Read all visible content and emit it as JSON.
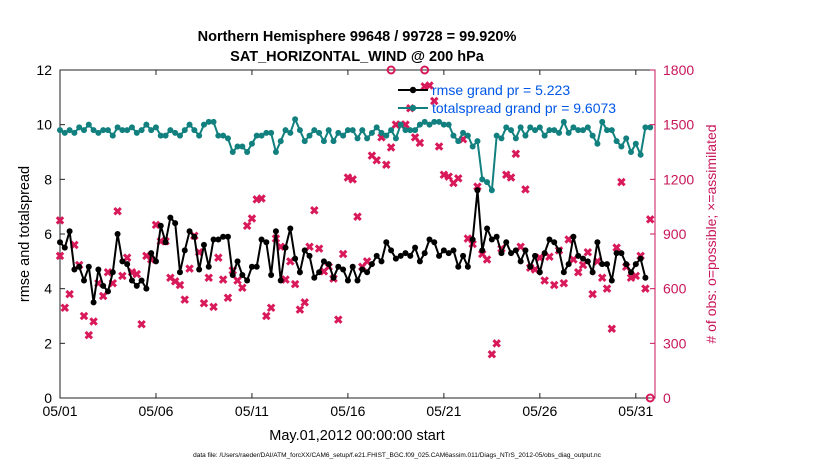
{
  "chart_data": {
    "type": "line",
    "title": "Northern Hemisphere 99648 / 99728 = 99.920%",
    "subtitle": "SAT_HORIZONTAL_WIND @ 200 hPa",
    "xlabel": "May.01,2012 00:00:00 start",
    "ylabel_left": "rmse and totalspread",
    "ylabel_right": "# of obs: o=possible; ×=assimilated",
    "footer": "data file: /Users/raeder/DAI/ATM_forcXX/CAM6_setup/f.e21.FHIST_BGC.f09_025.CAM6assim.011/Diags_NTrS_2012-05/obs_diag_output.nc",
    "xlim": [
      1,
      32
    ],
    "ylim_left": [
      0,
      12
    ],
    "ylim_right": [
      0,
      1800
    ],
    "x_ticks": [
      1,
      6,
      11,
      16,
      21,
      26,
      31
    ],
    "x_tick_labels": [
      "05/01",
      "05/06",
      "05/11",
      "05/16",
      "05/21",
      "05/26",
      "05/31"
    ],
    "y_ticks_left": [
      0,
      2,
      4,
      6,
      8,
      10,
      12
    ],
    "y_ticks_right": [
      0,
      300,
      600,
      900,
      1200,
      1500,
      1800
    ],
    "colors": {
      "rmse": "#000000",
      "spread": "#11807f",
      "obs": "#d8195a",
      "legend_text": "#0057e7",
      "right_axis": "#c8165a"
    },
    "legend": [
      "rmse grand pr = 5.223",
      "totalspread grand pr = 9.6073"
    ],
    "rmse": [
      [
        1.0,
        5.7
      ],
      [
        1.25,
        5.5
      ],
      [
        1.5,
        6.1
      ],
      [
        1.75,
        4.7
      ],
      [
        2.0,
        4.8
      ],
      [
        2.25,
        4.3
      ],
      [
        2.5,
        4.8
      ],
      [
        2.75,
        3.5
      ],
      [
        3.0,
        4.7
      ],
      [
        3.25,
        4.1
      ],
      [
        3.5,
        3.9
      ],
      [
        3.75,
        4.6
      ],
      [
        4.0,
        6.0
      ],
      [
        4.25,
        5.0
      ],
      [
        4.5,
        4.9
      ],
      [
        4.75,
        4.3
      ],
      [
        5.0,
        4.1
      ],
      [
        5.25,
        4.3
      ],
      [
        5.5,
        4.0
      ],
      [
        5.75,
        5.3
      ],
      [
        6.0,
        5.0
      ],
      [
        6.25,
        6.3
      ],
      [
        6.5,
        5.7
      ],
      [
        6.75,
        6.6
      ],
      [
        7.0,
        6.4
      ],
      [
        7.25,
        4.6
      ],
      [
        7.5,
        5.4
      ],
      [
        7.75,
        6.1
      ],
      [
        8.0,
        5.9
      ],
      [
        8.25,
        4.7
      ],
      [
        8.5,
        5.6
      ],
      [
        8.75,
        4.8
      ],
      [
        9.0,
        5.8
      ],
      [
        9.25,
        5.8
      ],
      [
        9.5,
        5.9
      ],
      [
        9.75,
        5.9
      ],
      [
        10.0,
        4.5
      ],
      [
        10.25,
        5.0
      ],
      [
        10.5,
        4.5
      ],
      [
        10.75,
        4.3
      ],
      [
        11.0,
        4.8
      ],
      [
        11.25,
        4.8
      ],
      [
        11.5,
        5.8
      ],
      [
        11.75,
        5.7
      ],
      [
        12.0,
        4.5
      ],
      [
        12.25,
        6.1
      ],
      [
        12.5,
        4.3
      ],
      [
        12.75,
        5.5
      ],
      [
        13.0,
        6.2
      ],
      [
        13.25,
        5.1
      ],
      [
        13.5,
        4.6
      ],
      [
        13.75,
        5.4
      ],
      [
        14.0,
        5.2
      ],
      [
        14.25,
        4.4
      ],
      [
        14.5,
        4.6
      ],
      [
        14.75,
        5.0
      ],
      [
        15.0,
        4.9
      ],
      [
        15.25,
        4.4
      ],
      [
        15.5,
        4.8
      ],
      [
        15.75,
        4.7
      ],
      [
        16.0,
        4.3
      ],
      [
        16.25,
        4.8
      ],
      [
        16.5,
        4.3
      ],
      [
        16.75,
        4.7
      ],
      [
        17.0,
        4.6
      ],
      [
        17.25,
        4.9
      ],
      [
        17.5,
        5.2
      ],
      [
        17.75,
        5.0
      ],
      [
        18.0,
        5.7
      ],
      [
        18.25,
        5.4
      ],
      [
        18.5,
        5.1
      ],
      [
        18.75,
        5.2
      ],
      [
        19.0,
        5.3
      ],
      [
        19.25,
        5.2
      ],
      [
        19.5,
        5.5
      ],
      [
        19.75,
        5.0
      ],
      [
        20.0,
        5.3
      ],
      [
        20.25,
        5.8
      ],
      [
        20.5,
        5.7
      ],
      [
        20.75,
        5.2
      ],
      [
        21.0,
        5.4
      ],
      [
        21.25,
        5.3
      ],
      [
        21.5,
        5.4
      ],
      [
        21.75,
        4.8
      ],
      [
        22.0,
        5.2
      ],
      [
        22.25,
        4.8
      ],
      [
        22.5,
        5.8
      ],
      [
        22.75,
        7.6
      ],
      [
        23.0,
        5.4
      ],
      [
        23.25,
        6.2
      ],
      [
        23.5,
        5.8
      ],
      [
        23.75,
        5.9
      ],
      [
        24.0,
        5.3
      ],
      [
        24.25,
        5.7
      ],
      [
        24.5,
        5.3
      ],
      [
        24.75,
        5.4
      ],
      [
        25.0,
        5.0
      ],
      [
        25.25,
        5.4
      ],
      [
        25.5,
        4.8
      ],
      [
        25.75,
        5.2
      ],
      [
        26.0,
        4.6
      ],
      [
        26.25,
        5.3
      ],
      [
        26.5,
        5.8
      ],
      [
        26.75,
        5.7
      ],
      [
        27.0,
        5.4
      ],
      [
        27.25,
        4.6
      ],
      [
        27.5,
        4.9
      ],
      [
        27.75,
        5.9
      ],
      [
        28.0,
        5.2
      ],
      [
        28.25,
        5.1
      ],
      [
        28.5,
        5.0
      ],
      [
        28.75,
        4.6
      ],
      [
        29.0,
        5.7
      ],
      [
        29.25,
        4.9
      ],
      [
        29.5,
        4.9
      ],
      [
        29.75,
        4.3
      ],
      [
        30.0,
        5.3
      ],
      [
        30.25,
        5.3
      ],
      [
        30.5,
        4.9
      ],
      [
        30.75,
        4.6
      ],
      [
        31.0,
        4.9
      ],
      [
        31.25,
        5.1
      ],
      [
        31.5,
        4.4
      ]
    ],
    "totalspread": [
      [
        1.0,
        9.8
      ],
      [
        1.25,
        9.7
      ],
      [
        1.5,
        9.8
      ],
      [
        1.75,
        9.7
      ],
      [
        2.0,
        9.9
      ],
      [
        2.25,
        9.8
      ],
      [
        2.5,
        10.0
      ],
      [
        2.75,
        9.8
      ],
      [
        3.0,
        9.7
      ],
      [
        3.25,
        9.8
      ],
      [
        3.5,
        9.8
      ],
      [
        3.75,
        9.6
      ],
      [
        4.0,
        9.9
      ],
      [
        4.25,
        9.8
      ],
      [
        4.5,
        9.8
      ],
      [
        4.75,
        9.9
      ],
      [
        5.0,
        9.7
      ],
      [
        5.25,
        9.8
      ],
      [
        5.5,
        10.0
      ],
      [
        5.75,
        9.8
      ],
      [
        6.0,
        9.9
      ],
      [
        6.25,
        9.6
      ],
      [
        6.5,
        9.6
      ],
      [
        6.75,
        9.8
      ],
      [
        7.0,
        9.7
      ],
      [
        7.25,
        9.6
      ],
      [
        7.5,
        9.8
      ],
      [
        7.75,
        10.0
      ],
      [
        8.0,
        9.8
      ],
      [
        8.25,
        9.6
      ],
      [
        8.5,
        10.0
      ],
      [
        8.75,
        10.1
      ],
      [
        9.0,
        10.1
      ],
      [
        9.25,
        9.6
      ],
      [
        9.5,
        9.6
      ],
      [
        9.75,
        9.5
      ],
      [
        10.0,
        9.0
      ],
      [
        10.25,
        9.2
      ],
      [
        10.5,
        9.2
      ],
      [
        10.75,
        9.0
      ],
      [
        11.0,
        9.3
      ],
      [
        11.25,
        9.6
      ],
      [
        11.5,
        9.6
      ],
      [
        11.75,
        9.7
      ],
      [
        12.0,
        9.7
      ],
      [
        12.25,
        9.0
      ],
      [
        12.5,
        9.4
      ],
      [
        12.75,
        9.8
      ],
      [
        13.0,
        9.7
      ],
      [
        13.25,
        10.2
      ],
      [
        13.5,
        9.8
      ],
      [
        13.75,
        9.4
      ],
      [
        14.0,
        9.6
      ],
      [
        14.25,
        9.8
      ],
      [
        14.5,
        9.7
      ],
      [
        14.75,
        9.4
      ],
      [
        15.0,
        9.8
      ],
      [
        15.25,
        9.4
      ],
      [
        15.5,
        9.7
      ],
      [
        15.75,
        9.6
      ],
      [
        16.0,
        9.8
      ],
      [
        16.25,
        9.8
      ],
      [
        16.5,
        9.5
      ],
      [
        16.75,
        9.8
      ],
      [
        17.0,
        9.5
      ],
      [
        17.25,
        9.7
      ],
      [
        17.5,
        9.9
      ],
      [
        17.75,
        9.7
      ],
      [
        18.0,
        9.6
      ],
      [
        18.25,
        9.8
      ],
      [
        18.5,
        9.5
      ],
      [
        18.75,
        10.0
      ],
      [
        19.0,
        9.8
      ],
      [
        19.25,
        9.8
      ],
      [
        19.5,
        9.8
      ],
      [
        19.75,
        10.0
      ],
      [
        20.0,
        10.1
      ],
      [
        20.25,
        10.0
      ],
      [
        20.5,
        10.1
      ],
      [
        20.75,
        10.1
      ],
      [
        21.0,
        10.0
      ],
      [
        21.25,
        10.0
      ],
      [
        21.5,
        9.6
      ],
      [
        21.75,
        9.4
      ],
      [
        22.0,
        9.7
      ],
      [
        22.25,
        9.6
      ],
      [
        22.5,
        9.2
      ],
      [
        22.75,
        9.4
      ],
      [
        23.0,
        8.0
      ],
      [
        23.25,
        7.9
      ],
      [
        23.5,
        7.6
      ],
      [
        23.75,
        9.6
      ],
      [
        24.0,
        9.5
      ],
      [
        24.25,
        9.9
      ],
      [
        24.5,
        9.8
      ],
      [
        24.75,
        9.5
      ],
      [
        25.0,
        9.9
      ],
      [
        25.25,
        9.6
      ],
      [
        25.5,
        9.9
      ],
      [
        25.75,
        9.8
      ],
      [
        26.0,
        9.9
      ],
      [
        26.25,
        9.6
      ],
      [
        26.5,
        9.8
      ],
      [
        26.75,
        9.8
      ],
      [
        27.0,
        9.7
      ],
      [
        27.25,
        10.1
      ],
      [
        27.5,
        9.7
      ],
      [
        27.75,
        9.9
      ],
      [
        28.0,
        9.8
      ],
      [
        28.25,
        9.8
      ],
      [
        28.5,
        9.9
      ],
      [
        28.75,
        9.6
      ],
      [
        29.0,
        9.3
      ],
      [
        29.25,
        10.1
      ],
      [
        29.5,
        9.8
      ],
      [
        29.75,
        9.8
      ],
      [
        30.0,
        9.4
      ],
      [
        30.25,
        9.2
      ],
      [
        30.5,
        9.5
      ],
      [
        30.75,
        9.0
      ],
      [
        31.0,
        9.3
      ],
      [
        31.25,
        8.9
      ],
      [
        31.5,
        9.9
      ],
      [
        31.75,
        9.9
      ]
    ],
    "obs_assimilated": [
      [
        1.0,
        975
      ],
      [
        1.0,
        780
      ],
      [
        1.25,
        495
      ],
      [
        1.5,
        570
      ],
      [
        1.75,
        840
      ],
      [
        2.0,
        730
      ],
      [
        2.25,
        450
      ],
      [
        2.5,
        345
      ],
      [
        2.75,
        420
      ],
      [
        3.0,
        630
      ],
      [
        3.25,
        560
      ],
      [
        3.5,
        690
      ],
      [
        3.75,
        630
      ],
      [
        4.0,
        1025
      ],
      [
        4.25,
        670
      ],
      [
        4.5,
        770
      ],
      [
        4.75,
        690
      ],
      [
        5.0,
        680
      ],
      [
        5.25,
        405
      ],
      [
        5.5,
        780
      ],
      [
        5.75,
        760
      ],
      [
        6.0,
        950
      ],
      [
        6.25,
        860
      ],
      [
        6.5,
        860
      ],
      [
        6.75,
        660
      ],
      [
        7.0,
        640
      ],
      [
        7.25,
        620
      ],
      [
        7.5,
        540
      ],
      [
        7.75,
        710
      ],
      [
        8.0,
        890
      ],
      [
        8.25,
        800
      ],
      [
        8.5,
        520
      ],
      [
        8.75,
        660
      ],
      [
        9.0,
        500
      ],
      [
        9.25,
        770
      ],
      [
        9.5,
        650
      ],
      [
        9.75,
        550
      ],
      [
        10.0,
        700
      ],
      [
        10.25,
        645
      ],
      [
        10.5,
        605
      ],
      [
        10.75,
        945
      ],
      [
        11.0,
        985
      ],
      [
        11.25,
        1090
      ],
      [
        11.5,
        1095
      ],
      [
        11.75,
        450
      ],
      [
        12.0,
        495
      ],
      [
        12.25,
        875
      ],
      [
        12.5,
        830
      ],
      [
        12.75,
        650
      ],
      [
        13.0,
        750
      ],
      [
        13.25,
        625
      ],
      [
        13.5,
        485
      ],
      [
        13.75,
        525
      ],
      [
        14.0,
        830
      ],
      [
        14.25,
        1030
      ],
      [
        14.5,
        820
      ],
      [
        14.75,
        695
      ],
      [
        15.0,
        720
      ],
      [
        15.25,
        655
      ],
      [
        15.5,
        430
      ],
      [
        15.75,
        790
      ],
      [
        16.0,
        1210
      ],
      [
        16.25,
        1200
      ],
      [
        16.5,
        995
      ],
      [
        16.75,
        720
      ],
      [
        17.0,
        750
      ],
      [
        17.25,
        1330
      ],
      [
        17.5,
        1305
      ],
      [
        17.75,
        1430
      ],
      [
        18.0,
        1280
      ],
      [
        18.25,
        1375
      ],
      [
        18.5,
        1500
      ],
      [
        18.75,
        1500
      ],
      [
        19.0,
        1500
      ],
      [
        19.25,
        1590
      ],
      [
        19.5,
        1430
      ],
      [
        19.75,
        1400
      ],
      [
        20.0,
        1710
      ],
      [
        20.25,
        1715
      ],
      [
        20.5,
        1630
      ],
      [
        20.75,
        1380
      ],
      [
        21.0,
        1225
      ],
      [
        21.25,
        1215
      ],
      [
        21.5,
        1180
      ],
      [
        21.75,
        1205
      ],
      [
        22.0,
        1420
      ],
      [
        22.25,
        875
      ],
      [
        22.5,
        845
      ],
      [
        22.75,
        1160
      ],
      [
        23.0,
        790
      ],
      [
        23.25,
        760
      ],
      [
        23.5,
        240
      ],
      [
        23.75,
        300
      ],
      [
        24.0,
        820
      ],
      [
        24.25,
        1225
      ],
      [
        24.5,
        1210
      ],
      [
        24.75,
        1340
      ],
      [
        25.0,
        830
      ],
      [
        25.25,
        1145
      ],
      [
        25.5,
        715
      ],
      [
        25.75,
        705
      ],
      [
        26.0,
        770
      ],
      [
        26.25,
        645
      ],
      [
        26.5,
        775
      ],
      [
        26.75,
        620
      ],
      [
        27.0,
        810
      ],
      [
        27.25,
        630
      ],
      [
        27.5,
        870
      ],
      [
        27.75,
        760
      ],
      [
        28.0,
        690
      ],
      [
        28.25,
        730
      ],
      [
        28.5,
        800
      ],
      [
        28.75,
        570
      ],
      [
        29.0,
        750
      ],
      [
        29.25,
        660
      ],
      [
        29.5,
        600
      ],
      [
        29.75,
        380
      ],
      [
        30.0,
        825
      ],
      [
        30.25,
        1185
      ],
      [
        30.5,
        720
      ],
      [
        30.75,
        660
      ],
      [
        31.0,
        670
      ],
      [
        31.25,
        780
      ],
      [
        31.5,
        600
      ],
      [
        31.75,
        980
      ]
    ],
    "obs_possible": [
      [
        18.25,
        1800
      ],
      [
        20.0,
        1800
      ],
      [
        31.75,
        0
      ]
    ]
  }
}
